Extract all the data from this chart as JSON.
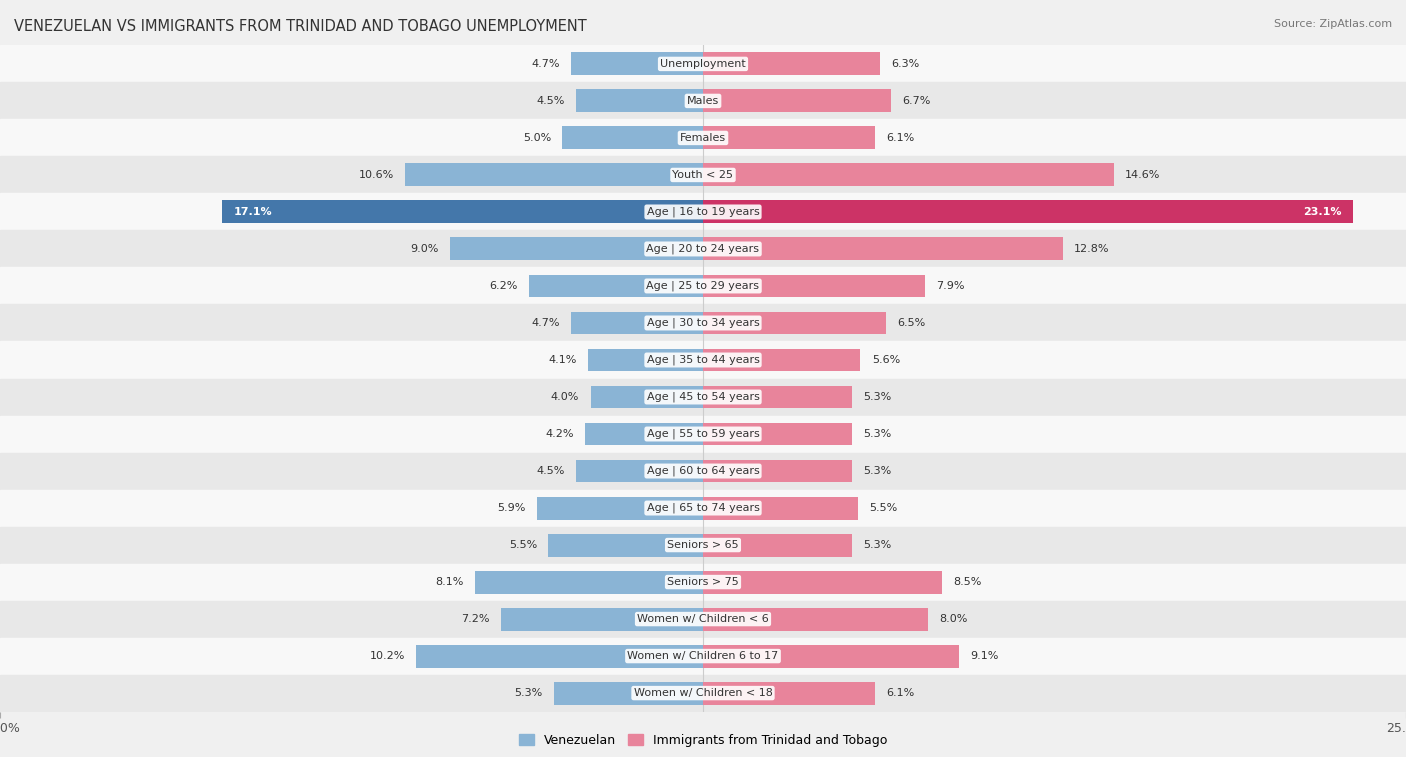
{
  "title": "VENEZUELAN VS IMMIGRANTS FROM TRINIDAD AND TOBAGO UNEMPLOYMENT",
  "source": "Source: ZipAtlas.com",
  "categories": [
    "Unemployment",
    "Males",
    "Females",
    "Youth < 25",
    "Age | 16 to 19 years",
    "Age | 20 to 24 years",
    "Age | 25 to 29 years",
    "Age | 30 to 34 years",
    "Age | 35 to 44 years",
    "Age | 45 to 54 years",
    "Age | 55 to 59 years",
    "Age | 60 to 64 years",
    "Age | 65 to 74 years",
    "Seniors > 65",
    "Seniors > 75",
    "Women w/ Children < 6",
    "Women w/ Children 6 to 17",
    "Women w/ Children < 18"
  ],
  "venezuelan": [
    4.7,
    4.5,
    5.0,
    10.6,
    17.1,
    9.0,
    6.2,
    4.7,
    4.1,
    4.0,
    4.2,
    4.5,
    5.9,
    5.5,
    8.1,
    7.2,
    10.2,
    5.3
  ],
  "trinidad": [
    6.3,
    6.7,
    6.1,
    14.6,
    23.1,
    12.8,
    7.9,
    6.5,
    5.6,
    5.3,
    5.3,
    5.3,
    5.5,
    5.3,
    8.5,
    8.0,
    9.1,
    6.1
  ],
  "venezuelan_color": "#8ab4d5",
  "trinidad_color": "#e8849b",
  "venezuelan_highlight": "#4477aa",
  "trinidad_highlight": "#cc3366",
  "axis_max": 25.0,
  "bg_color": "#f0f0f0",
  "row_color_even": "#f8f8f8",
  "row_color_odd": "#e8e8e8",
  "bar_height": 0.62,
  "label_fontsize": 8.0,
  "value_fontsize": 8.0,
  "legend_venezuelan": "Venezuelan",
  "legend_trinidad": "Immigrants from Trinidad and Tobago"
}
